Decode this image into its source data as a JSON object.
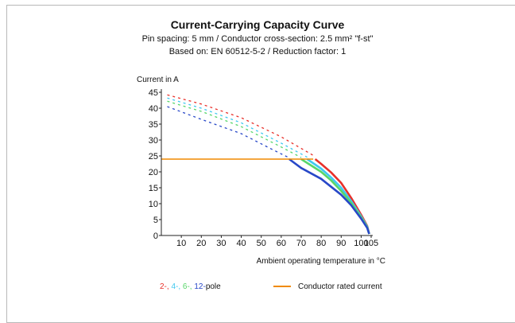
{
  "chart_data": {
    "type": "line",
    "title": "Current-Carrying Capacity Curve",
    "subtitle_1": "Pin spacing: 5 mm / Conductor cross-section: 2.5 mm² \"f-st\"",
    "subtitle_2": "Based on: EN 60512-5-2 / Reduction factor: 1",
    "ylabel": "Current in A",
    "xlabel": "Ambient operating temperature in °C",
    "xlim": [
      0,
      105
    ],
    "ylim": [
      0,
      45
    ],
    "x_ticks": [
      10,
      20,
      30,
      40,
      50,
      60,
      70,
      80,
      90,
      100,
      105
    ],
    "y_ticks": [
      0,
      5,
      10,
      15,
      20,
      25,
      30,
      35,
      40,
      45
    ],
    "grid": false,
    "legend_position": "bottom",
    "legend": {
      "pole_entries": [
        "2-,",
        "4-,",
        "6-,",
        "12-"
      ],
      "pole_suffix": "pole",
      "rated_label": "Conductor rated current"
    },
    "series": [
      {
        "name": "2-",
        "color": "#e8302a",
        "dashed": [
          [
            3,
            44.2
          ],
          [
            20,
            41.3
          ],
          [
            40,
            37.0
          ],
          [
            60,
            31.0
          ],
          [
            77,
            24.8
          ]
        ],
        "solid": [
          [
            77,
            24.0
          ],
          [
            80,
            22.5
          ],
          [
            85,
            19.8
          ],
          [
            90,
            16.5
          ],
          [
            95,
            11.8
          ],
          [
            100,
            6.5
          ],
          [
            103,
            3.0
          ],
          [
            104,
            0.5
          ]
        ]
      },
      {
        "name": "4-",
        "color": "#3fc8f0",
        "dashed": [
          [
            3,
            43.2
          ],
          [
            20,
            40.0
          ],
          [
            40,
            35.4
          ],
          [
            60,
            29.0
          ],
          [
            73,
            24.6
          ]
        ],
        "solid": [
          [
            73,
            24.0
          ],
          [
            80,
            21.0
          ],
          [
            85,
            18.2
          ],
          [
            90,
            15.0
          ],
          [
            95,
            10.8
          ],
          [
            100,
            6.0
          ],
          [
            103,
            2.8
          ],
          [
            104,
            0.5
          ]
        ]
      },
      {
        "name": "6-",
        "color": "#58d66a",
        "dashed": [
          [
            3,
            42.2
          ],
          [
            20,
            39.0
          ],
          [
            40,
            34.2
          ],
          [
            60,
            27.8
          ],
          [
            70,
            24.5
          ]
        ],
        "solid": [
          [
            70,
            24.0
          ],
          [
            80,
            20.0
          ],
          [
            85,
            17.3
          ],
          [
            90,
            14.0
          ],
          [
            95,
            10.2
          ],
          [
            100,
            5.7
          ],
          [
            103,
            2.6
          ],
          [
            104,
            0.5
          ]
        ]
      },
      {
        "name": "12-",
        "color": "#2848c8",
        "dashed": [
          [
            3,
            40.5
          ],
          [
            20,
            36.5
          ],
          [
            40,
            32.0
          ],
          [
            55,
            27.2
          ],
          [
            64,
            24.4
          ]
        ],
        "solid": [
          [
            64,
            24.0
          ],
          [
            70,
            21.2
          ],
          [
            80,
            17.8
          ],
          [
            90,
            12.8
          ],
          [
            95,
            9.5
          ],
          [
            100,
            5.3
          ],
          [
            103,
            2.4
          ],
          [
            104,
            0.5
          ]
        ]
      },
      {
        "name": "Conductor rated current",
        "color": "#f08a00",
        "solid": [
          [
            0,
            24
          ],
          [
            76,
            24
          ]
        ]
      }
    ]
  }
}
